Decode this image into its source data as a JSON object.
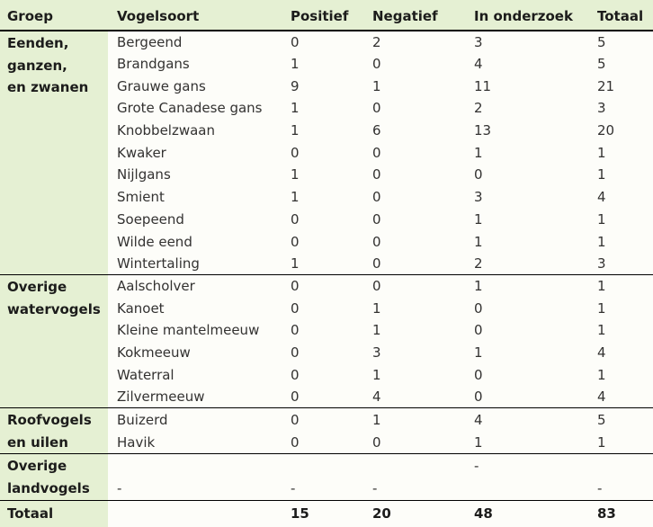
{
  "colors": {
    "accent_green_bg": "#e5f0d3",
    "border_black": "#000000",
    "text_dark": "#333231",
    "text_bold": "#1c1c1b",
    "page_bg": "#fdfdf9"
  },
  "chart_data": {
    "type": "table",
    "columns": [
      "Groep",
      "Vogelsoort",
      "Positief",
      "Negatief",
      "In onderzoek",
      "Totaal"
    ],
    "sections": [
      {
        "group": "Eenden, ganzen, en zwanen",
        "group_lines": [
          "Eenden,",
          "ganzen,",
          "en zwanen"
        ],
        "rows": [
          {
            "vogelsoort": "Bergeend",
            "positief": "0",
            "negatief": "2",
            "in_onderzoek": "3",
            "totaal": "5"
          },
          {
            "vogelsoort": "Brandgans",
            "positief": "1",
            "negatief": "0",
            "in_onderzoek": "4",
            "totaal": "5"
          },
          {
            "vogelsoort": "Grauwe gans",
            "positief": "9",
            "negatief": "1",
            "in_onderzoek": "11",
            "totaal": "21"
          },
          {
            "vogelsoort": "Grote Canadese gans",
            "positief": "1",
            "negatief": "0",
            "in_onderzoek": "2",
            "totaal": "3"
          },
          {
            "vogelsoort": "Knobbelzwaan",
            "positief": "1",
            "negatief": "6",
            "in_onderzoek": "13",
            "totaal": "20"
          },
          {
            "vogelsoort": "Kwaker",
            "positief": "0",
            "negatief": "0",
            "in_onderzoek": "1",
            "totaal": "1"
          },
          {
            "vogelsoort": "Nijlgans",
            "positief": "1",
            "negatief": "0",
            "in_onderzoek": "0",
            "totaal": "1"
          },
          {
            "vogelsoort": "Smient",
            "positief": "1",
            "negatief": "0",
            "in_onderzoek": "3",
            "totaal": "4"
          },
          {
            "vogelsoort": "Soepeend",
            "positief": "0",
            "negatief": "0",
            "in_onderzoek": "1",
            "totaal": "1"
          },
          {
            "vogelsoort": "Wilde eend",
            "positief": "0",
            "negatief": "0",
            "in_onderzoek": "1",
            "totaal": "1"
          },
          {
            "vogelsoort": "Wintertaling",
            "positief": "1",
            "negatief": "0",
            "in_onderzoek": "2",
            "totaal": "3"
          }
        ]
      },
      {
        "group": "Overige watervogels",
        "group_lines": [
          "Overige",
          "watervogels"
        ],
        "rows": [
          {
            "vogelsoort": "Aalscholver",
            "positief": "0",
            "negatief": "0",
            "in_onderzoek": "1",
            "totaal": "1"
          },
          {
            "vogelsoort": "Kanoet",
            "positief": "0",
            "negatief": "1",
            "in_onderzoek": "0",
            "totaal": "1"
          },
          {
            "vogelsoort": "Kleine mantelmeeuw",
            "positief": "0",
            "negatief": "1",
            "in_onderzoek": "0",
            "totaal": "1"
          },
          {
            "vogelsoort": "Kokmeeuw",
            "positief": "0",
            "negatief": "3",
            "in_onderzoek": "1",
            "totaal": "4"
          },
          {
            "vogelsoort": "Waterral",
            "positief": "0",
            "negatief": "1",
            "in_onderzoek": "0",
            "totaal": "1"
          },
          {
            "vogelsoort": "Zilvermeeuw",
            "positief": "0",
            "negatief": "4",
            "in_onderzoek": "0",
            "totaal": "4"
          }
        ]
      },
      {
        "group": "Roofvogels en uilen",
        "group_lines": [
          "Roofvogels",
          "en uilen"
        ],
        "rows": [
          {
            "vogelsoort": "Buizerd",
            "positief": "0",
            "negatief": "1",
            "in_onderzoek": "4",
            "totaal": "5"
          },
          {
            "vogelsoort": "Havik",
            "positief": "0",
            "negatief": "0",
            "in_onderzoek": "1",
            "totaal": "1"
          }
        ]
      },
      {
        "group": "Overige landvogels",
        "group_lines": [
          "Overige",
          "landvogels"
        ],
        "rows": [
          {
            "vogelsoort": "",
            "positief": "",
            "negatief": "",
            "in_onderzoek": "-",
            "totaal": ""
          },
          {
            "vogelsoort": "-",
            "positief": "-",
            "negatief": "-",
            "in_onderzoek": "",
            "totaal": "-"
          }
        ]
      }
    ],
    "total_row": {
      "label": "Totaal",
      "positief": "15",
      "negatief": "20",
      "in_onderzoek": "48",
      "totaal": "83"
    }
  }
}
